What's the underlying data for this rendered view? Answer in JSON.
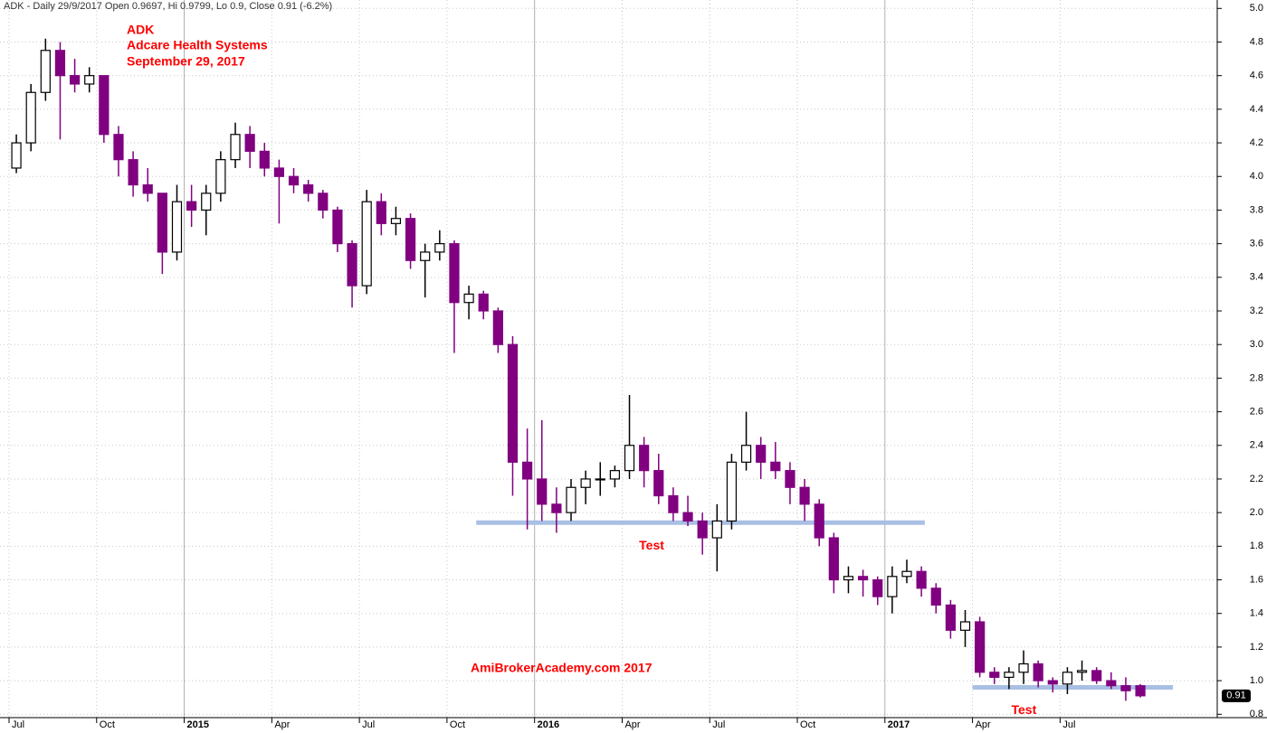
{
  "chart_data": {
    "type": "candlestick",
    "header": "ADK - Daily 29/9/2017 Open 0.9697, Hi 0.9799, Lo 0.9, Close 0.91 (-6.2%)",
    "title": "ADK",
    "subtitle": "Adcare Health Systems",
    "date": "September 29, 2017",
    "watermark": "AmiBrokerAcademy.com  2017",
    "categories": [
      "Jul",
      null,
      null,
      null,
      null,
      null,
      "Oct",
      null,
      null,
      null,
      null,
      null,
      "2015",
      null,
      null,
      null,
      null,
      null,
      "Apr",
      null,
      null,
      null,
      null,
      null,
      "Jul",
      null,
      null,
      null,
      null,
      null,
      "Oct",
      null,
      null,
      null,
      null,
      null,
      "2016",
      null,
      null,
      null,
      null,
      null,
      "Apr",
      null,
      null,
      null,
      null,
      null,
      "Jul",
      null,
      null,
      null,
      null,
      null,
      "Oct",
      null,
      null,
      null,
      null,
      null,
      "2017",
      null,
      null,
      null,
      null,
      null,
      "Apr",
      null,
      null,
      null,
      null,
      null,
      "Jul",
      null,
      null,
      null,
      null,
      null
    ],
    "open": [
      4.05,
      4.2,
      4.5,
      4.75,
      4.6,
      4.55,
      4.6,
      4.25,
      4.1,
      3.95,
      3.9,
      3.55,
      3.85,
      3.8,
      3.9,
      4.1,
      4.25,
      4.15,
      4.05,
      4.0,
      3.95,
      3.9,
      3.8,
      3.6,
      3.35,
      3.85,
      3.72,
      3.75,
      3.5,
      3.55,
      3.6,
      3.25,
      3.3,
      3.2,
      3.0,
      2.3,
      2.2,
      2.05,
      2.0,
      2.15,
      2.2,
      2.2,
      2.25,
      2.4,
      2.25,
      2.1,
      2.0,
      1.95,
      1.85,
      1.95,
      2.3,
      2.4,
      2.3,
      2.25,
      2.15,
      2.05,
      1.85,
      1.6,
      1.62,
      1.6,
      1.5,
      1.62,
      1.65,
      1.55,
      1.45,
      1.3,
      1.35,
      1.05,
      1.02,
      1.05,
      1.1,
      1.0,
      0.98,
      1.05,
      1.06,
      1.0,
      0.97,
      0.9697
    ],
    "high": [
      4.25,
      4.55,
      4.82,
      4.8,
      4.7,
      4.65,
      4.6,
      4.3,
      4.15,
      4.05,
      3.9,
      3.95,
      3.95,
      3.95,
      4.15,
      4.32,
      4.3,
      4.2,
      4.1,
      4.05,
      3.98,
      3.92,
      3.82,
      3.62,
      3.92,
      3.9,
      3.82,
      3.78,
      3.6,
      3.68,
      3.62,
      3.35,
      3.32,
      3.22,
      3.05,
      2.5,
      2.55,
      2.15,
      2.2,
      2.25,
      2.3,
      2.28,
      2.7,
      2.45,
      2.35,
      2.15,
      2.1,
      2.0,
      2.05,
      2.35,
      2.6,
      2.45,
      2.42,
      2.3,
      2.2,
      2.08,
      1.88,
      1.68,
      1.66,
      1.62,
      1.68,
      1.72,
      1.68,
      1.58,
      1.48,
      1.42,
      1.38,
      1.08,
      1.08,
      1.18,
      1.12,
      1.02,
      1.08,
      1.12,
      1.08,
      1.05,
      1.02,
      0.9799
    ],
    "low": [
      4.02,
      4.15,
      4.45,
      4.22,
      4.5,
      4.5,
      4.2,
      4.0,
      3.88,
      3.85,
      3.42,
      3.5,
      3.7,
      3.65,
      3.85,
      4.05,
      4.05,
      4.0,
      3.72,
      3.9,
      3.85,
      3.75,
      3.55,
      3.22,
      3.3,
      3.65,
      3.65,
      3.45,
      3.28,
      3.5,
      2.95,
      3.15,
      3.15,
      2.95,
      2.1,
      1.9,
      1.95,
      1.88,
      1.95,
      2.05,
      2.1,
      2.15,
      2.2,
      2.15,
      2.05,
      1.95,
      1.92,
      1.75,
      1.65,
      1.9,
      2.25,
      2.2,
      2.2,
      2.05,
      1.95,
      1.8,
      1.52,
      1.52,
      1.5,
      1.45,
      1.4,
      1.58,
      1.5,
      1.4,
      1.25,
      1.2,
      1.02,
      0.98,
      0.95,
      0.98,
      0.96,
      0.93,
      0.92,
      1.0,
      0.98,
      0.95,
      0.88,
      0.9
    ],
    "close": [
      4.2,
      4.5,
      4.75,
      4.6,
      4.55,
      4.6,
      4.25,
      4.1,
      3.95,
      3.9,
      3.55,
      3.85,
      3.8,
      3.9,
      4.1,
      4.25,
      4.15,
      4.05,
      4.0,
      3.95,
      3.9,
      3.8,
      3.6,
      3.35,
      3.85,
      3.72,
      3.75,
      3.5,
      3.55,
      3.6,
      3.25,
      3.3,
      3.2,
      3.0,
      2.3,
      2.2,
      2.05,
      2.0,
      2.15,
      2.2,
      2.2,
      2.25,
      2.4,
      2.25,
      2.1,
      2.0,
      1.95,
      1.85,
      1.95,
      2.3,
      2.4,
      2.3,
      2.25,
      2.15,
      2.05,
      1.85,
      1.6,
      1.62,
      1.6,
      1.5,
      1.62,
      1.65,
      1.55,
      1.45,
      1.3,
      1.35,
      1.05,
      1.02,
      1.05,
      1.1,
      1.0,
      0.98,
      1.05,
      1.06,
      1.0,
      0.97,
      0.94,
      0.91
    ],
    "up_color": "#000000",
    "down_color": "#800080",
    "last_price": 0.91,
    "support_lines": [
      {
        "value": 1.94,
        "from": 32,
        "to": 60,
        "label": "Test",
        "color": "#a9bfe3"
      },
      {
        "value": 0.96,
        "from": 66,
        "to": 77,
        "label": "Test",
        "color": "#a9bfe3"
      }
    ],
    "ylim": [
      0.78,
      5.05
    ],
    "yticks": [
      0.8,
      {
        "value": 1.0,
        "label": "1.0"
      },
      1.2,
      1.4,
      1.6,
      1.8,
      {
        "value": 2.0,
        "label": "2.0"
      },
      2.2,
      2.4,
      2.6,
      2.8,
      {
        "value": 3.0,
        "label": "3.0"
      },
      3.2,
      3.4,
      3.6,
      3.8,
      {
        "value": 4.0,
        "label": "4.0"
      },
      4.2,
      4.4,
      4.6,
      4.8,
      {
        "value": 5.0,
        "label": "5.0"
      }
    ],
    "grid": true
  }
}
